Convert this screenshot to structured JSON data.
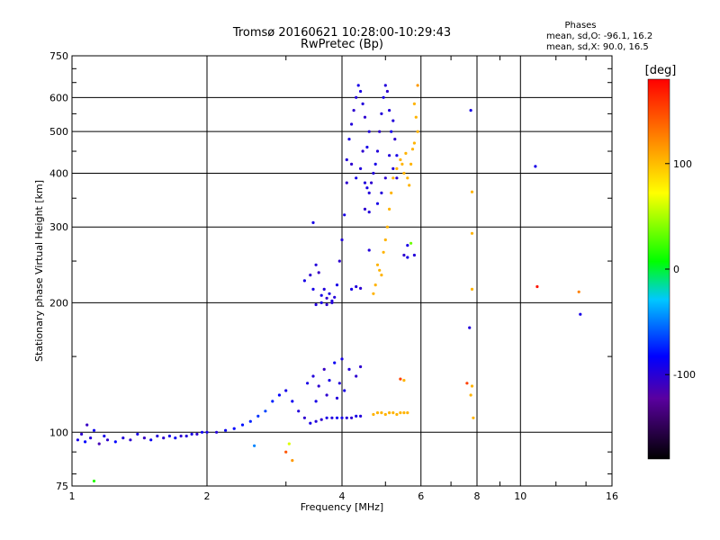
{
  "chart_data": {
    "type": "scatter",
    "title": "Tromsø 20160621 10:28:00-10:29:43",
    "subtitle": "RwPretec (Bp)",
    "xlabel": "Frequency [MHz]",
    "ylabel": "Stationary phase Virtual Height [km]",
    "x_scale": "log",
    "y_scale": "log",
    "xlim": [
      1,
      16
    ],
    "ylim": [
      75,
      750
    ],
    "x_ticks": [
      1,
      2,
      4,
      6,
      8,
      10,
      16
    ],
    "y_ticks": [
      75,
      100,
      200,
      300,
      400,
      500,
      600,
      750
    ],
    "grid": true,
    "phases_box": {
      "title": "Phases",
      "line_o": "mean, sd,O: -96.1, 16.2",
      "line_x": "mean, sd,X:  90.0, 16.5"
    },
    "colorbar": {
      "unit": "[deg]",
      "ticks": [
        100,
        0,
        -100
      ],
      "range": [
        -180,
        180
      ]
    },
    "series": [
      {
        "points": [
          [
            1.03,
            96,
            -110
          ],
          [
            1.05,
            99,
            -120
          ],
          [
            1.07,
            95,
            -100
          ],
          [
            1.08,
            104,
            -125
          ],
          [
            1.1,
            97,
            -115
          ],
          [
            1.12,
            101,
            -105
          ],
          [
            1.15,
            94,
            -130
          ],
          [
            1.18,
            98,
            -110
          ],
          [
            1.2,
            96,
            -120
          ],
          [
            1.25,
            95,
            -100
          ],
          [
            1.3,
            97,
            -115
          ],
          [
            1.35,
            96,
            -120
          ],
          [
            1.4,
            99,
            -110
          ],
          [
            1.45,
            97,
            -125
          ],
          [
            1.5,
            96,
            -105
          ],
          [
            1.55,
            98,
            -115
          ],
          [
            1.6,
            97,
            -120
          ],
          [
            1.65,
            98,
            -110
          ],
          [
            1.7,
            97,
            -105
          ],
          [
            1.75,
            98,
            -120
          ],
          [
            1.8,
            98,
            -115
          ],
          [
            1.85,
            99,
            -110
          ],
          [
            1.9,
            99,
            -120
          ],
          [
            1.95,
            100,
            -105
          ],
          [
            2.0,
            100,
            -110
          ],
          [
            2.1,
            100,
            -115
          ],
          [
            2.2,
            101,
            -105
          ],
          [
            2.3,
            102,
            -100
          ],
          [
            2.4,
            104,
            -95
          ],
          [
            2.5,
            106,
            -90
          ],
          [
            2.6,
            109,
            -85
          ],
          [
            2.7,
            112,
            -80
          ],
          [
            2.8,
            118,
            -90
          ],
          [
            2.9,
            122,
            -100
          ],
          [
            3.0,
            125,
            -110
          ],
          [
            3.1,
            118,
            -105
          ],
          [
            3.2,
            112,
            -115
          ],
          [
            3.3,
            108,
            -120
          ],
          [
            3.4,
            105,
            -110
          ],
          [
            3.5,
            106,
            -115
          ],
          [
            3.6,
            107,
            -120
          ],
          [
            3.7,
            108,
            -110
          ],
          [
            3.8,
            108,
            -115
          ],
          [
            3.9,
            108,
            -105
          ],
          [
            4.0,
            108,
            -110
          ],
          [
            4.1,
            108,
            -115
          ],
          [
            4.2,
            108,
            -120
          ],
          [
            4.3,
            109,
            -110
          ],
          [
            4.4,
            109,
            -115
          ],
          [
            3.35,
            130,
            -110
          ],
          [
            3.45,
            135,
            -115
          ],
          [
            3.55,
            128,
            -120
          ],
          [
            3.65,
            140,
            -125
          ],
          [
            3.75,
            132,
            -110
          ],
          [
            3.85,
            145,
            -105
          ],
          [
            3.95,
            130,
            -115
          ],
          [
            4.05,
            125,
            -110
          ],
          [
            4.15,
            140,
            -115
          ],
          [
            4.3,
            135,
            -120
          ],
          [
            3.5,
            118,
            -110
          ],
          [
            3.7,
            122,
            -120
          ],
          [
            3.9,
            120,
            -115
          ],
          [
            4.0,
            148,
            -110
          ],
          [
            4.4,
            142,
            -120
          ],
          [
            4.7,
            110,
            100
          ],
          [
            4.8,
            111,
            100
          ],
          [
            4.9,
            111,
            100
          ],
          [
            5.0,
            110,
            100
          ],
          [
            5.1,
            111,
            100
          ],
          [
            5.2,
            111,
            100
          ],
          [
            5.3,
            110,
            100
          ],
          [
            5.4,
            111,
            100
          ],
          [
            5.5,
            111,
            100
          ],
          [
            5.6,
            111,
            100
          ],
          [
            3.3,
            225,
            -110
          ],
          [
            3.4,
            232,
            -120
          ],
          [
            3.5,
            245,
            -115
          ],
          [
            3.45,
            215,
            -110
          ],
          [
            3.55,
            235,
            -125
          ],
          [
            3.6,
            208,
            -110
          ],
          [
            3.65,
            215,
            -115
          ],
          [
            3.7,
            205,
            -120
          ],
          [
            3.75,
            210,
            -110
          ],
          [
            3.8,
            202,
            -115
          ],
          [
            3.5,
            198,
            -115
          ],
          [
            3.6,
            200,
            -110
          ],
          [
            3.7,
            198,
            -120
          ],
          [
            3.8,
            200,
            -115
          ],
          [
            3.85,
            206,
            -115
          ],
          [
            3.9,
            220,
            -110
          ],
          [
            3.95,
            250,
            -120
          ],
          [
            4.0,
            280,
            -115
          ],
          [
            4.05,
            320,
            -110
          ],
          [
            4.1,
            380,
            -120
          ],
          [
            4.1,
            430,
            -115
          ],
          [
            4.15,
            480,
            -110
          ],
          [
            4.2,
            520,
            -115
          ],
          [
            4.25,
            560,
            -120
          ],
          [
            4.3,
            600,
            -115
          ],
          [
            4.35,
            640,
            -110
          ],
          [
            4.2,
            420,
            -120
          ],
          [
            4.3,
            390,
            -110
          ],
          [
            4.4,
            410,
            -115
          ],
          [
            4.45,
            450,
            -120
          ],
          [
            4.5,
            380,
            -115
          ],
          [
            4.55,
            370,
            -110
          ],
          [
            4.6,
            360,
            -115
          ],
          [
            4.65,
            380,
            -120
          ],
          [
            4.7,
            400,
            -115
          ],
          [
            4.75,
            420,
            -110
          ],
          [
            4.8,
            450,
            -115
          ],
          [
            4.85,
            500,
            -120
          ],
          [
            4.9,
            550,
            -115
          ],
          [
            4.95,
            600,
            -110
          ],
          [
            5.0,
            640,
            -115
          ],
          [
            5.05,
            620,
            -120
          ],
          [
            5.1,
            560,
            -115
          ],
          [
            5.15,
            500,
            -110
          ],
          [
            5.1,
            440,
            -115
          ],
          [
            5.0,
            390,
            -120
          ],
          [
            4.9,
            360,
            -115
          ],
          [
            4.8,
            340,
            -110
          ],
          [
            4.6,
            325,
            -115
          ],
          [
            4.5,
            330,
            -120
          ],
          [
            4.4,
            620,
            -110
          ],
          [
            4.45,
            580,
            -115
          ],
          [
            4.5,
            540,
            -120
          ],
          [
            4.6,
            500,
            -115
          ],
          [
            4.55,
            460,
            -110
          ],
          [
            5.2,
            530,
            -115
          ],
          [
            5.25,
            480,
            -120
          ],
          [
            5.3,
            440,
            -110
          ],
          [
            5.2,
            410,
            -115
          ],
          [
            5.3,
            390,
            -120
          ],
          [
            4.2,
            215,
            -110
          ],
          [
            4.3,
            218,
            -115
          ],
          [
            4.4,
            216,
            -120
          ],
          [
            5.6,
            272,
            -110
          ],
          [
            5.7,
            275,
            30
          ],
          [
            5.8,
            258,
            -115
          ],
          [
            5.6,
            255,
            -110
          ],
          [
            5.5,
            258,
            -120
          ],
          [
            4.8,
            245,
            100
          ],
          [
            4.85,
            238,
            100
          ],
          [
            4.9,
            232,
            100
          ],
          [
            4.95,
            262,
            100
          ],
          [
            5.0,
            280,
            100
          ],
          [
            5.05,
            300,
            100
          ],
          [
            5.1,
            330,
            100
          ],
          [
            5.15,
            360,
            100
          ],
          [
            5.2,
            390,
            100
          ],
          [
            5.3,
            410,
            100
          ],
          [
            5.4,
            430,
            100
          ],
          [
            5.5,
            400,
            100
          ],
          [
            5.6,
            390,
            100
          ],
          [
            5.7,
            420,
            100
          ],
          [
            5.8,
            470,
            100
          ],
          [
            5.9,
            500,
            100
          ],
          [
            5.85,
            540,
            100
          ],
          [
            5.8,
            580,
            100
          ],
          [
            5.9,
            640,
            110
          ],
          [
            5.75,
            455,
            100
          ],
          [
            5.65,
            375,
            100
          ],
          [
            5.45,
            420,
            100
          ],
          [
            5.55,
            445,
            100
          ],
          [
            4.75,
            220,
            100
          ],
          [
            4.7,
            210,
            100
          ],
          [
            7.75,
            560,
            -110
          ],
          [
            7.8,
            362,
            100
          ],
          [
            7.8,
            290,
            100
          ],
          [
            7.8,
            215,
            100
          ],
          [
            7.7,
            175,
            -115
          ],
          [
            7.6,
            130,
            150
          ],
          [
            7.8,
            128,
            100
          ],
          [
            7.85,
            108,
            100
          ],
          [
            7.75,
            122,
            100
          ],
          [
            10.8,
            415,
            -110
          ],
          [
            10.9,
            218,
            170
          ],
          [
            13.5,
            212,
            120
          ],
          [
            13.6,
            188,
            -110
          ],
          [
            3.05,
            94,
            60
          ],
          [
            3.1,
            86,
            110
          ],
          [
            3.0,
            90,
            140
          ],
          [
            2.55,
            93,
            -60
          ],
          [
            1.12,
            77,
            10
          ],
          [
            3.45,
            307,
            -110
          ],
          [
            4.6,
            265,
            -115
          ],
          [
            5.4,
            133,
            150
          ],
          [
            5.5,
            132,
            100
          ]
        ]
      }
    ]
  }
}
